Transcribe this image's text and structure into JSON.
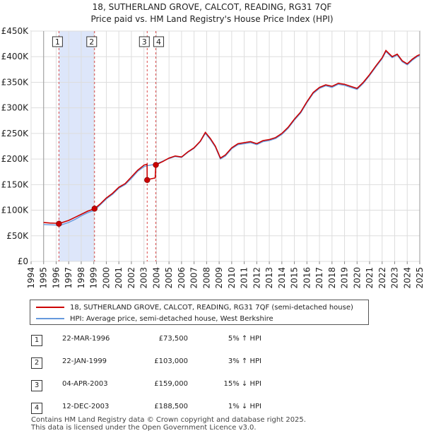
{
  "title_line1": "18, SUTHERLAND GROVE, CALCOT, READING, RG31 7QF",
  "title_line2": "Price paid vs. HM Land Registry's House Price Index (HPI)",
  "legend": {
    "property_label": "18, SUTHERLAND GROVE, CALCOT, READING, RG31 7QF (semi-detached house)",
    "hpi_label": "HPI: Average price, semi-detached house, West Berkshire"
  },
  "colors": {
    "property": "#cc0000",
    "hpi": "#6699dd",
    "shade": "#dde6fa",
    "grid": "#dddddd"
  },
  "sales": [
    {
      "num": "1",
      "date": "22-MAR-1996",
      "price": "£73,500",
      "hpi": "5% ↑ HPI"
    },
    {
      "num": "2",
      "date": "22-JAN-1999",
      "price": "£103,000",
      "hpi": "3% ↑ HPI"
    },
    {
      "num": "3",
      "date": "04-APR-2003",
      "price": "£159,000",
      "hpi": "15% ↓ HPI"
    },
    {
      "num": "4",
      "date": "12-DEC-2003",
      "price": "£188,500",
      "hpi": "1% ↓ HPI"
    }
  ],
  "footer_line1": "Contains HM Land Registry data © Crown copyright and database right 2025.",
  "footer_line2": "This data is licensed under the Open Government Licence v3.0.",
  "chart_data": {
    "type": "line",
    "title": "18, SUTHERLAND GROVE, CALCOT, READING, RG31 7QF — Price paid vs. HM Land Registry's House Price Index (HPI)",
    "xlim": [
      1994,
      2025
    ],
    "ylim": [
      0,
      450000
    ],
    "x_ticks": [
      "1994",
      "1995",
      "1996",
      "1997",
      "1998",
      "1999",
      "2000",
      "2001",
      "2002",
      "2003",
      "2004",
      "2005",
      "2006",
      "2007",
      "2008",
      "2009",
      "2010",
      "2011",
      "2012",
      "2013",
      "2014",
      "2015",
      "2016",
      "2017",
      "2018",
      "2019",
      "2020",
      "2021",
      "2022",
      "2023",
      "2024",
      "2025"
    ],
    "y_ticks": [
      {
        "value": 0,
        "label": "£0"
      },
      {
        "value": 50000,
        "label": "£50K"
      },
      {
        "value": 100000,
        "label": "£100K"
      },
      {
        "value": 150000,
        "label": "£150K"
      },
      {
        "value": 200000,
        "label": "£200K"
      },
      {
        "value": 250000,
        "label": "£250K"
      },
      {
        "value": 300000,
        "label": "£300K"
      },
      {
        "value": 350000,
        "label": "£350K"
      },
      {
        "value": 400000,
        "label": "£400K"
      },
      {
        "value": 450000,
        "label": "£450K"
      }
    ],
    "shaded_range": [
      1996.22,
      1999.06
    ],
    "markers": [
      {
        "label": "1",
        "x": 1996.22,
        "y": 73500
      },
      {
        "label": "2",
        "x": 1999.06,
        "y": 103000
      },
      {
        "label": "3",
        "x": 2003.26,
        "y": 159000
      },
      {
        "label": "4",
        "x": 2003.95,
        "y": 188500
      }
    ],
    "series": [
      {
        "name": "18, SUTHERLAND GROVE, CALCOT, READING, RG31 7QF (semi-detached house)",
        "points": [
          [
            1995.0,
            76000
          ],
          [
            1995.5,
            75000
          ],
          [
            1996.0,
            74500
          ],
          [
            1996.22,
            73500
          ],
          [
            1996.5,
            76000
          ],
          [
            1997.0,
            80000
          ],
          [
            1997.5,
            86000
          ],
          [
            1998.0,
            92000
          ],
          [
            1998.5,
            98000
          ],
          [
            1999.06,
            103000
          ],
          [
            1999.5,
            112000
          ],
          [
            2000.0,
            124000
          ],
          [
            2000.5,
            133000
          ],
          [
            2001.0,
            145000
          ],
          [
            2001.5,
            152000
          ],
          [
            2002.0,
            165000
          ],
          [
            2002.5,
            178000
          ],
          [
            2003.0,
            188000
          ],
          [
            2003.25,
            190000
          ],
          [
            2003.26,
            159000
          ],
          [
            2003.5,
            161000
          ],
          [
            2003.9,
            163000
          ],
          [
            2003.95,
            188500
          ],
          [
            2004.5,
            195000
          ],
          [
            2005.0,
            202000
          ],
          [
            2005.5,
            206000
          ],
          [
            2006.0,
            204000
          ],
          [
            2006.5,
            214000
          ],
          [
            2007.0,
            222000
          ],
          [
            2007.5,
            235000
          ],
          [
            2007.9,
            252000
          ],
          [
            2008.3,
            240000
          ],
          [
            2008.7,
            225000
          ],
          [
            2009.1,
            202000
          ],
          [
            2009.5,
            208000
          ],
          [
            2010.0,
            222000
          ],
          [
            2010.5,
            230000
          ],
          [
            2011.0,
            232000
          ],
          [
            2011.5,
            234000
          ],
          [
            2012.0,
            230000
          ],
          [
            2012.5,
            236000
          ],
          [
            2013.0,
            238000
          ],
          [
            2013.5,
            242000
          ],
          [
            2014.0,
            250000
          ],
          [
            2014.5,
            262000
          ],
          [
            2015.0,
            278000
          ],
          [
            2015.5,
            292000
          ],
          [
            2016.0,
            312000
          ],
          [
            2016.5,
            330000
          ],
          [
            2017.0,
            340000
          ],
          [
            2017.5,
            345000
          ],
          [
            2018.0,
            342000
          ],
          [
            2018.5,
            348000
          ],
          [
            2019.0,
            346000
          ],
          [
            2019.5,
            342000
          ],
          [
            2020.0,
            338000
          ],
          [
            2020.5,
            350000
          ],
          [
            2021.0,
            365000
          ],
          [
            2021.5,
            382000
          ],
          [
            2022.0,
            398000
          ],
          [
            2022.3,
            412000
          ],
          [
            2022.8,
            400000
          ],
          [
            2023.2,
            405000
          ],
          [
            2023.6,
            392000
          ],
          [
            2024.0,
            386000
          ],
          [
            2024.4,
            395000
          ],
          [
            2024.8,
            402000
          ],
          [
            2025.0,
            404000
          ]
        ]
      },
      {
        "name": "HPI: Average price, semi-detached house, West Berkshire",
        "points": [
          [
            1995.0,
            72000
          ],
          [
            1995.5,
            71500
          ],
          [
            1996.0,
            71000
          ],
          [
            1996.22,
            70000
          ],
          [
            1996.5,
            72000
          ],
          [
            1997.0,
            76000
          ],
          [
            1997.5,
            82000
          ],
          [
            1998.0,
            89000
          ],
          [
            1998.5,
            95000
          ],
          [
            1999.06,
            100000
          ],
          [
            1999.5,
            110000
          ],
          [
            2000.0,
            122000
          ],
          [
            2000.5,
            131000
          ],
          [
            2001.0,
            143000
          ],
          [
            2001.5,
            150000
          ],
          [
            2002.0,
            162000
          ],
          [
            2002.5,
            176000
          ],
          [
            2003.0,
            185000
          ],
          [
            2003.26,
            187000
          ],
          [
            2003.5,
            188000
          ],
          [
            2003.95,
            190000
          ],
          [
            2004.5,
            196000
          ],
          [
            2005.0,
            201000
          ],
          [
            2005.5,
            205000
          ],
          [
            2006.0,
            203000
          ],
          [
            2006.5,
            213000
          ],
          [
            2007.0,
            221000
          ],
          [
            2007.5,
            234000
          ],
          [
            2007.9,
            250000
          ],
          [
            2008.3,
            238000
          ],
          [
            2008.7,
            223000
          ],
          [
            2009.1,
            200000
          ],
          [
            2009.5,
            206000
          ],
          [
            2010.0,
            220000
          ],
          [
            2010.5,
            228000
          ],
          [
            2011.0,
            230000
          ],
          [
            2011.5,
            232000
          ],
          [
            2012.0,
            228000
          ],
          [
            2012.5,
            234000
          ],
          [
            2013.0,
            236000
          ],
          [
            2013.5,
            240000
          ],
          [
            2014.0,
            248000
          ],
          [
            2014.5,
            260000
          ],
          [
            2015.0,
            276000
          ],
          [
            2015.5,
            290000
          ],
          [
            2016.0,
            310000
          ],
          [
            2016.5,
            328000
          ],
          [
            2017.0,
            338000
          ],
          [
            2017.5,
            343000
          ],
          [
            2018.0,
            340000
          ],
          [
            2018.5,
            346000
          ],
          [
            2019.0,
            344000
          ],
          [
            2019.5,
            340000
          ],
          [
            2020.0,
            336000
          ],
          [
            2020.5,
            348000
          ],
          [
            2021.0,
            363000
          ],
          [
            2021.5,
            380000
          ],
          [
            2022.0,
            396000
          ],
          [
            2022.3,
            410000
          ],
          [
            2022.8,
            398000
          ],
          [
            2023.2,
            403000
          ],
          [
            2023.6,
            390000
          ],
          [
            2024.0,
            384000
          ],
          [
            2024.4,
            393000
          ],
          [
            2024.8,
            400000
          ],
          [
            2025.0,
            402000
          ]
        ]
      }
    ]
  }
}
